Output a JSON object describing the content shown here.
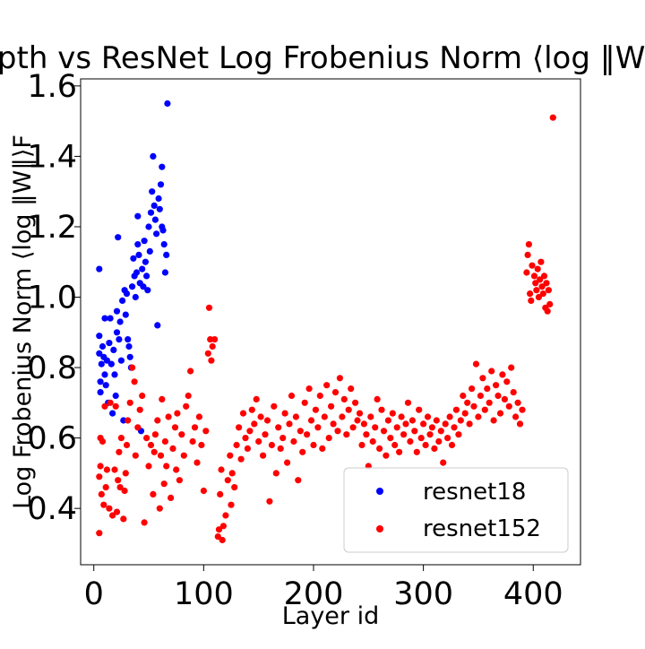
{
  "chart_data": {
    "type": "scatter",
    "title": "Depth vs ResNet Log Frobenius Norm ⟨log ‖W‖F⟩",
    "xlabel": "Layer id",
    "ylabel": "Log Frobenius Norm ⟨log ‖W‖⟩F",
    "xlim": [
      -12,
      443
    ],
    "ylim": [
      0.24,
      1.62
    ],
    "x_ticks": [
      0,
      100,
      200,
      300,
      400
    ],
    "y_ticks": [
      0.4,
      0.6,
      0.8,
      1.0,
      1.2,
      1.4,
      1.6
    ],
    "x_tick_labels": [
      "0",
      "100",
      "200",
      "300",
      "400"
    ],
    "y_tick_labels": [
      "0.4",
      "0.6",
      "0.8",
      "1.0",
      "1.2",
      "1.4",
      "1.6"
    ],
    "grid": false,
    "legend_position": "lower-right",
    "series": [
      {
        "name": "resnet18",
        "color": "#0000ff",
        "points": [
          [
            5,
            1.08
          ],
          [
            5,
            0.89
          ],
          [
            5,
            0.84
          ],
          [
            6,
            0.76
          ],
          [
            6,
            0.73
          ],
          [
            7,
            0.81
          ],
          [
            8,
            0.86
          ],
          [
            9,
            0.83
          ],
          [
            10,
            0.94
          ],
          [
            10,
            0.78
          ],
          [
            11,
            0.75
          ],
          [
            12,
            0.82
          ],
          [
            13,
            0.7
          ],
          [
            14,
            0.87
          ],
          [
            15,
            0.94
          ],
          [
            16,
            0.81
          ],
          [
            17,
            0.67
          ],
          [
            18,
            0.85
          ],
          [
            19,
            0.78
          ],
          [
            20,
            0.72
          ],
          [
            21,
            0.96
          ],
          [
            21,
            0.9
          ],
          [
            22,
            1.17
          ],
          [
            23,
            0.88
          ],
          [
            24,
            0.93
          ],
          [
            25,
            0.82
          ],
          [
            26,
            0.99
          ],
          [
            27,
            0.65
          ],
          [
            28,
            1.02
          ],
          [
            29,
            0.95
          ],
          [
            30,
            1.01
          ],
          [
            31,
            0.88
          ],
          [
            32,
            0.86
          ],
          [
            33,
            0.83
          ],
          [
            34,
            0.8
          ],
          [
            35,
            1.03
          ],
          [
            36,
            1.11
          ],
          [
            37,
            1.06
          ],
          [
            38,
            1.0
          ],
          [
            39,
            1.07
          ],
          [
            40,
            1.23
          ],
          [
            40,
            1.15
          ],
          [
            41,
            1.12
          ],
          [
            42,
            1.04
          ],
          [
            43,
            0.62
          ],
          [
            44,
            1.08
          ],
          [
            45,
            1.03
          ],
          [
            46,
            1.16
          ],
          [
            47,
            1.1
          ],
          [
            48,
            1.06
          ],
          [
            49,
            1.02
          ],
          [
            50,
            1.2
          ],
          [
            51,
            1.13
          ],
          [
            52,
            1.24
          ],
          [
            53,
            1.3
          ],
          [
            54,
            1.4
          ],
          [
            55,
            1.26
          ],
          [
            56,
            1.22
          ],
          [
            57,
            1.18
          ],
          [
            58,
            0.92
          ],
          [
            59,
            1.28
          ],
          [
            60,
            1.25
          ],
          [
            61,
            1.32
          ],
          [
            62,
            1.37
          ],
          [
            63,
            1.19
          ],
          [
            64,
            1.15
          ],
          [
            65,
            1.07
          ],
          [
            66,
            1.12
          ],
          [
            67,
            1.55
          ],
          [
            62,
            1.2
          ]
        ]
      },
      {
        "name": "resnet152",
        "color": "#ff0000",
        "points": [
          [
            5,
            0.33
          ],
          [
            5,
            0.49
          ],
          [
            6,
            0.52
          ],
          [
            6,
            0.6
          ],
          [
            7,
            0.44
          ],
          [
            8,
            0.59
          ],
          [
            9,
            0.41
          ],
          [
            10,
            0.69
          ],
          [
            11,
            0.46
          ],
          [
            12,
            0.51
          ],
          [
            14,
            0.4
          ],
          [
            15,
            0.7
          ],
          [
            17,
            0.38
          ],
          [
            19,
            0.51
          ],
          [
            20,
            0.69
          ],
          [
            21,
            0.39
          ],
          [
            22,
            0.48
          ],
          [
            23,
            0.56
          ],
          [
            24,
            0.46
          ],
          [
            25,
            0.6
          ],
          [
            27,
            0.37
          ],
          [
            28,
            0.45
          ],
          [
            29,
            0.5
          ],
          [
            30,
            0.58
          ],
          [
            31,
            0.65
          ],
          [
            33,
            0.7
          ],
          [
            35,
            0.8
          ],
          [
            37,
            0.76
          ],
          [
            38,
            0.55
          ],
          [
            40,
            0.63
          ],
          [
            42,
            0.68
          ],
          [
            44,
            0.72
          ],
          [
            46,
            0.36
          ],
          [
            48,
            0.6
          ],
          [
            50,
            0.52
          ],
          [
            52,
            0.58
          ],
          [
            54,
            0.44
          ],
          [
            55,
            0.56
          ],
          [
            56,
            0.61
          ],
          [
            58,
            0.65
          ],
          [
            60,
            0.4
          ],
          [
            61,
            0.55
          ],
          [
            62,
            0.71
          ],
          [
            64,
            0.47
          ],
          [
            65,
            0.59
          ],
          [
            66,
            0.52
          ],
          [
            68,
            0.66
          ],
          [
            70,
            0.43
          ],
          [
            72,
            0.57
          ],
          [
            74,
            0.63
          ],
          [
            75,
            0.51
          ],
          [
            76,
            0.67
          ],
          [
            78,
            0.48
          ],
          [
            80,
            0.61
          ],
          [
            82,
            0.55
          ],
          [
            84,
            0.69
          ],
          [
            86,
            0.72
          ],
          [
            88,
            0.79
          ],
          [
            90,
            0.59
          ],
          [
            92,
            0.63
          ],
          [
            94,
            0.53
          ],
          [
            96,
            0.66
          ],
          [
            98,
            0.58
          ],
          [
            100,
            0.45
          ],
          [
            102,
            0.62
          ],
          [
            104,
            0.84
          ],
          [
            105,
            0.97
          ],
          [
            106,
            0.88
          ],
          [
            107,
            0.82
          ],
          [
            108,
            0.86
          ],
          [
            110,
            0.88
          ],
          [
            113,
            0.32
          ],
          [
            114,
            0.34
          ],
          [
            115,
            0.44
          ],
          [
            116,
            0.51
          ],
          [
            117,
            0.31
          ],
          [
            118,
            0.35
          ],
          [
            120,
            0.38
          ],
          [
            122,
            0.48
          ],
          [
            124,
            0.55
          ],
          [
            125,
            0.41
          ],
          [
            126,
            0.5
          ],
          [
            128,
            0.46
          ],
          [
            130,
            0.58
          ],
          [
            132,
            0.63
          ],
          [
            134,
            0.54
          ],
          [
            136,
            0.67
          ],
          [
            138,
            0.6
          ],
          [
            140,
            0.57
          ],
          [
            142,
            0.62
          ],
          [
            144,
            0.68
          ],
          [
            146,
            0.64
          ],
          [
            148,
            0.71
          ],
          [
            150,
            0.59
          ],
          [
            152,
            0.66
          ],
          [
            154,
            0.55
          ],
          [
            156,
            0.61
          ],
          [
            158,
            0.65
          ],
          [
            160,
            0.42
          ],
          [
            162,
            0.58
          ],
          [
            164,
            0.69
          ],
          [
            166,
            0.5
          ],
          [
            168,
            0.63
          ],
          [
            170,
            0.57
          ],
          [
            172,
            0.6
          ],
          [
            174,
            0.67
          ],
          [
            176,
            0.53
          ],
          [
            178,
            0.64
          ],
          [
            180,
            0.72
          ],
          [
            182,
            0.59
          ],
          [
            184,
            0.66
          ],
          [
            186,
            0.48
          ],
          [
            188,
            0.62
          ],
          [
            190,
            0.56
          ],
          [
            192,
            0.7
          ],
          [
            194,
            0.61
          ],
          [
            196,
            0.74
          ],
          [
            198,
            0.65
          ],
          [
            200,
            0.58
          ],
          [
            202,
            0.68
          ],
          [
            204,
            0.63
          ],
          [
            206,
            0.72
          ],
          [
            208,
            0.57
          ],
          [
            210,
            0.66
          ],
          [
            212,
            0.75
          ],
          [
            214,
            0.6
          ],
          [
            216,
            0.69
          ],
          [
            218,
            0.64
          ],
          [
            220,
            0.73
          ],
          [
            222,
            0.62
          ],
          [
            224,
            0.77
          ],
          [
            226,
            0.66
          ],
          [
            228,
            0.71
          ],
          [
            230,
            0.61
          ],
          [
            232,
            0.68
          ],
          [
            234,
            0.74
          ],
          [
            236,
            0.63
          ],
          [
            238,
            0.7
          ],
          [
            240,
            0.65
          ],
          [
            242,
            0.67
          ],
          [
            244,
            0.58
          ],
          [
            246,
            0.64
          ],
          [
            248,
            0.61
          ],
          [
            250,
            0.52
          ],
          [
            252,
            0.66
          ],
          [
            254,
            0.59
          ],
          [
            256,
            0.63
          ],
          [
            258,
            0.71
          ],
          [
            260,
            0.57
          ],
          [
            262,
            0.68
          ],
          [
            264,
            0.62
          ],
          [
            266,
            0.55
          ],
          [
            268,
            0.65
          ],
          [
            270,
            0.6
          ],
          [
            272,
            0.67
          ],
          [
            274,
            0.58
          ],
          [
            276,
            0.63
          ],
          [
            278,
            0.56
          ],
          [
            280,
            0.66
          ],
          [
            282,
            0.61
          ],
          [
            284,
            0.64
          ],
          [
            286,
            0.7
          ],
          [
            288,
            0.59
          ],
          [
            290,
            0.65
          ],
          [
            292,
            0.62
          ],
          [
            294,
            0.56
          ],
          [
            296,
            0.68
          ],
          [
            298,
            0.6
          ],
          [
            300,
            0.64
          ],
          [
            302,
            0.58
          ],
          [
            304,
            0.66
          ],
          [
            306,
            0.61
          ],
          [
            308,
            0.63
          ],
          [
            310,
            0.57
          ],
          [
            312,
            0.65
          ],
          [
            314,
            0.59
          ],
          [
            316,
            0.62
          ],
          [
            318,
            0.53
          ],
          [
            320,
            0.64
          ],
          [
            322,
            0.6
          ],
          [
            324,
            0.66
          ],
          [
            326,
            0.58
          ],
          [
            328,
            0.63
          ],
          [
            330,
            0.68
          ],
          [
            332,
            0.61
          ],
          [
            334,
            0.65
          ],
          [
            336,
            0.72
          ],
          [
            338,
            0.67
          ],
          [
            340,
            0.7
          ],
          [
            342,
            0.64
          ],
          [
            344,
            0.74
          ],
          [
            346,
            0.69
          ],
          [
            348,
            0.81
          ],
          [
            350,
            0.66
          ],
          [
            352,
            0.72
          ],
          [
            354,
            0.77
          ],
          [
            356,
            0.68
          ],
          [
            358,
            0.74
          ],
          [
            360,
            0.7
          ],
          [
            362,
            0.79
          ],
          [
            364,
            0.65
          ],
          [
            366,
            0.75
          ],
          [
            368,
            0.72
          ],
          [
            370,
            0.67
          ],
          [
            372,
            0.78
          ],
          [
            374,
            0.71
          ],
          [
            376,
            0.76
          ],
          [
            378,
            0.69
          ],
          [
            380,
            0.8
          ],
          [
            382,
            0.73
          ],
          [
            384,
            0.66
          ],
          [
            386,
            0.7
          ],
          [
            388,
            0.64
          ],
          [
            390,
            0.68
          ],
          [
            394,
            1.07
          ],
          [
            395,
            1.12
          ],
          [
            396,
            1.15
          ],
          [
            397,
            1.01
          ],
          [
            398,
            0.99
          ],
          [
            399,
            1.09
          ],
          [
            401,
            1.06
          ],
          [
            402,
            1.04
          ],
          [
            403,
            1.02
          ],
          [
            404,
            1.08
          ],
          [
            405,
            1.0
          ],
          [
            406,
            1.05
          ],
          [
            407,
            1.1
          ],
          [
            408,
            1.03
          ],
          [
            409,
            1.01
          ],
          [
            410,
            1.06
          ],
          [
            411,
            0.97
          ],
          [
            412,
            1.04
          ],
          [
            413,
            0.96
          ],
          [
            414,
            1.02
          ],
          [
            415,
            0.98
          ],
          [
            418,
            1.51
          ]
        ]
      }
    ]
  }
}
